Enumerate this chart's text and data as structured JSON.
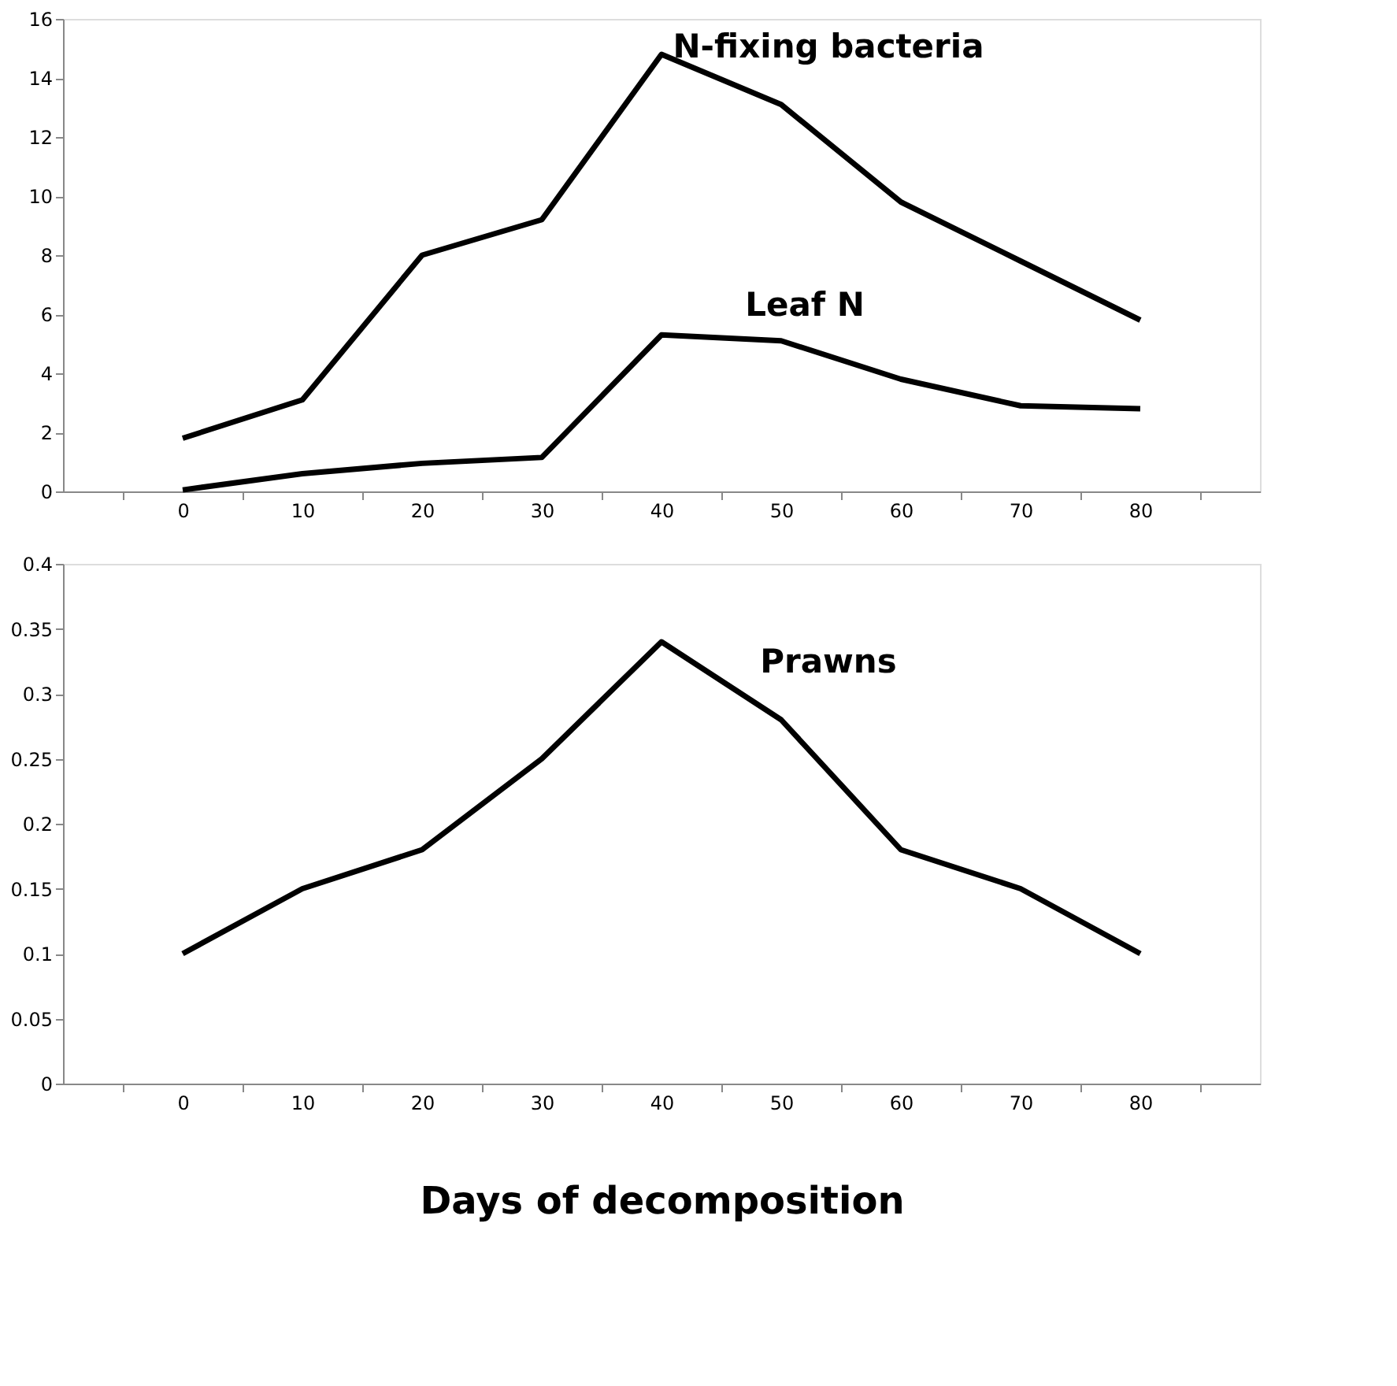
{
  "chart_data": [
    {
      "type": "line",
      "categories": [
        "0",
        "10",
        "20",
        "30",
        "40",
        "50",
        "60",
        "70",
        "80"
      ],
      "ylim": [
        0,
        16
      ],
      "yticks": [
        0,
        2,
        4,
        6,
        8,
        10,
        12,
        14,
        16
      ],
      "grid": false,
      "legend": false,
      "marker": "none",
      "line_style": "solid",
      "series": [
        {
          "name": "N-fixing bacteria",
          "color": "#000000",
          "values": [
            1.8,
            3.1,
            8.0,
            9.2,
            14.8,
            13.1,
            9.8,
            7.8,
            5.8
          ]
        },
        {
          "name": "Leaf N",
          "color": "#000000",
          "values": [
            0.05,
            0.6,
            0.95,
            1.15,
            5.3,
            5.1,
            3.8,
            2.9,
            2.8
          ]
        }
      ]
    },
    {
      "type": "line",
      "categories": [
        "0",
        "10",
        "20",
        "30",
        "40",
        "50",
        "60",
        "70",
        "80"
      ],
      "ylim": [
        0,
        0.4
      ],
      "yticks": [
        0,
        0.05,
        0.1,
        0.15,
        0.2,
        0.25,
        0.3,
        0.35,
        0.4
      ],
      "grid": false,
      "legend": false,
      "marker": "none",
      "line_style": "solid",
      "xlabel": "Days of decomposition",
      "series": [
        {
          "name": "Prawns",
          "color": "#000000",
          "values": [
            0.1,
            0.15,
            0.18,
            0.25,
            0.34,
            0.28,
            0.18,
            0.15,
            0.1
          ]
        }
      ]
    }
  ]
}
